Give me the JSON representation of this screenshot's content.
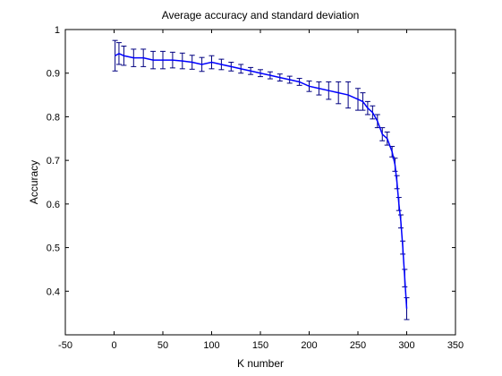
{
  "chart_data": {
    "type": "line",
    "title": "Average accuracy and standard deviation",
    "xlabel": "K number",
    "ylabel": "Accuracy",
    "xlim": [
      -50,
      350
    ],
    "ylim": [
      0.3,
      1.0
    ],
    "xticks": [
      -50,
      0,
      50,
      100,
      150,
      200,
      250,
      300,
      350
    ],
    "yticks": [
      0.4,
      0.5,
      0.6,
      0.7,
      0.8,
      0.9,
      1.0
    ],
    "xtick_labels": [
      "-50",
      "0",
      "50",
      "100",
      "150",
      "200",
      "250",
      "300",
      "350"
    ],
    "ytick_labels": [
      "0.4",
      "0.5",
      "0.6",
      "0.7",
      "0.8",
      "0.9",
      "1"
    ],
    "grid": false,
    "legend": "none",
    "series": [
      {
        "color": "#0000ff",
        "error_bar_color": "#000080",
        "x": [
          1,
          5,
          10,
          20,
          30,
          40,
          50,
          60,
          70,
          80,
          90,
          100,
          110,
          120,
          130,
          140,
          150,
          160,
          170,
          180,
          190,
          200,
          210,
          220,
          230,
          240,
          250,
          255,
          260,
          265,
          270,
          275,
          280,
          285,
          288,
          290,
          292,
          294,
          296,
          298,
          300
        ],
        "y": [
          0.94,
          0.945,
          0.94,
          0.935,
          0.935,
          0.93,
          0.93,
          0.93,
          0.928,
          0.925,
          0.92,
          0.925,
          0.92,
          0.915,
          0.91,
          0.905,
          0.9,
          0.895,
          0.89,
          0.885,
          0.88,
          0.87,
          0.865,
          0.86,
          0.855,
          0.85,
          0.84,
          0.835,
          0.82,
          0.81,
          0.79,
          0.76,
          0.75,
          0.72,
          0.69,
          0.65,
          0.6,
          0.56,
          0.5,
          0.43,
          0.36
        ],
        "err": [
          0.035,
          0.025,
          0.022,
          0.02,
          0.02,
          0.02,
          0.02,
          0.018,
          0.018,
          0.016,
          0.016,
          0.015,
          0.012,
          0.01,
          0.01,
          0.008,
          0.008,
          0.008,
          0.008,
          0.008,
          0.008,
          0.012,
          0.015,
          0.02,
          0.025,
          0.03,
          0.025,
          0.02,
          0.015,
          0.015,
          0.015,
          0.015,
          0.015,
          0.012,
          0.015,
          0.015,
          0.015,
          0.015,
          0.015,
          0.02,
          0.025
        ]
      }
    ]
  }
}
